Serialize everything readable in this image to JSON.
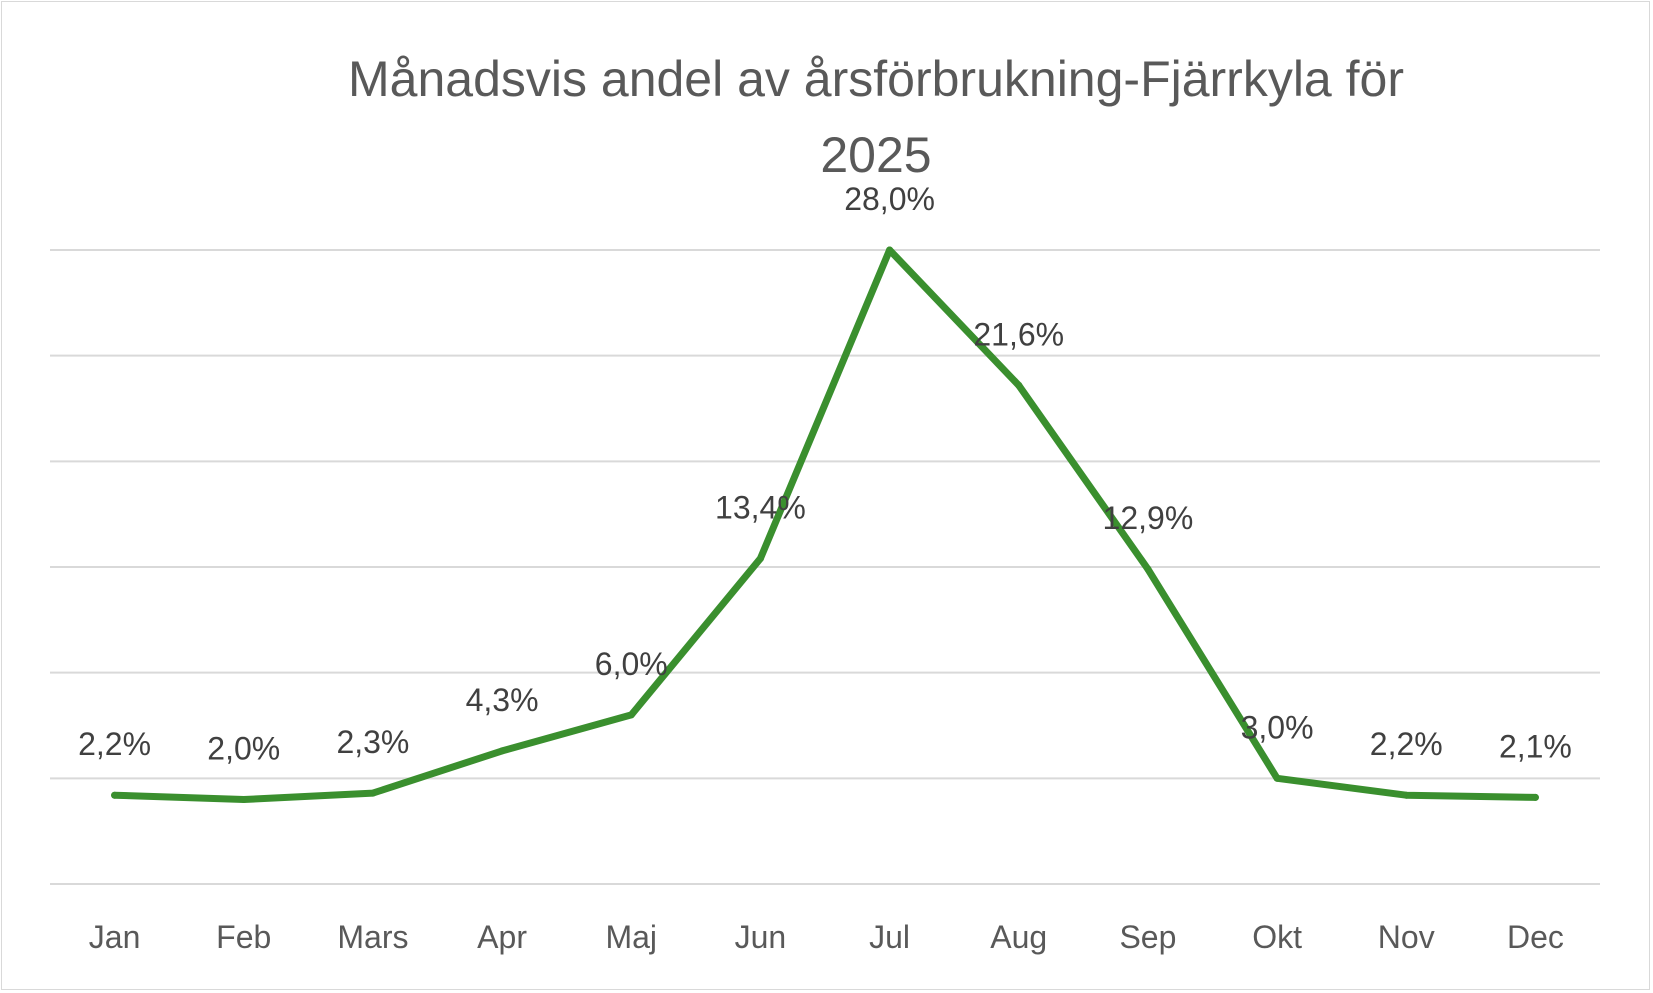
{
  "chart_data": {
    "type": "line",
    "title": "Månadsvis andel av årsförbrukning-Fjärrkyla för 2025",
    "title_lines": [
      "Månadsvis andel av årsförbrukning-Fjärrkyla för",
      "2025"
    ],
    "categories": [
      "Jan",
      "Feb",
      "Mars",
      "Apr",
      "Maj",
      "Jun",
      "Jul",
      "Aug",
      "Sep",
      "Okt",
      "Nov",
      "Dec"
    ],
    "series": [
      {
        "values": [
          2.2,
          2.0,
          2.3,
          4.3,
          6.0,
          13.4,
          28.0,
          21.6,
          12.9,
          3.0,
          2.2,
          2.1
        ],
        "labels": [
          "2,2%",
          "2,0%",
          "2,3%",
          "4,3%",
          "6,0%",
          "13,4%",
          "28,0%",
          "21,6%",
          "12,9%",
          "3,0%",
          "2,2%",
          "2,1%"
        ],
        "color": "#3a8f2e"
      }
    ],
    "xlabel": "",
    "ylabel": "",
    "ylim": [
      -2,
      28
    ],
    "y_gridline_count": 7,
    "y_axis_labels_visible": false,
    "grid": true,
    "gridline_color": "#d9d9d9",
    "legend": "none"
  }
}
